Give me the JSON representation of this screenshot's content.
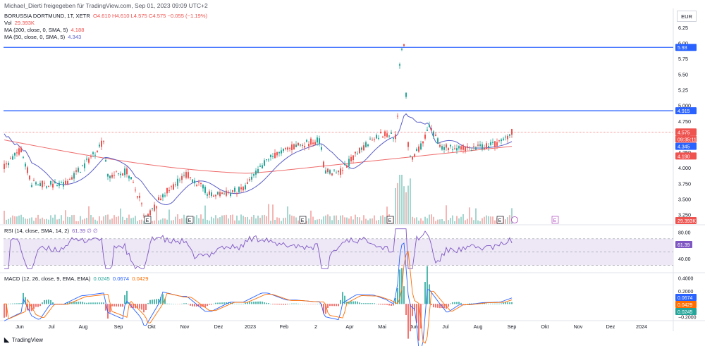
{
  "header": {
    "attribution": "Michael_Dierti freigegeben für TradingView.com, Sep 01, 2023 09:09 UTC+2"
  },
  "legend": {
    "symbol": "BORUSSIA DORTMUND, 1T, XETR",
    "ohlc": "O4.610  H4.610  L4.575  C4.575  −0.055 (−1.19%)",
    "vol_label": "Vol",
    "vol_value": "29.393K",
    "ma200_label": "MA (200, close, 0, SMA, 5)",
    "ma200_value": "4.188",
    "ma50_label": "MA (50, close, 0, SMA, 5)",
    "ma50_value": "4.343",
    "rsi_label": "RSI (14, close, SMA, 14, 2)",
    "rsi_value": "61.39  ∅  ∅",
    "macd_label": "MACD (12, 26, close, 9, EMA, EMA)",
    "macd_values": [
      "0.0245",
      "0.0674",
      "0.0429"
    ]
  },
  "currency": "EUR",
  "footer": {
    "brand": "TradingView"
  },
  "colors": {
    "up": "#26a69a",
    "down": "#ef5350",
    "ma50": "#5b5fc7",
    "ma200": "#ef6c6c",
    "hline": "#2962ff",
    "rsi": "#7e57c2",
    "macd": "#2962ff",
    "signal": "#ff6d00"
  },
  "chart_data": {
    "type": "candlestick",
    "price_axis": [
      "6.25",
      "6.00",
      "5.75",
      "5.50",
      "5.25",
      "5.000",
      "4.750",
      "4.500",
      "4.250",
      "4.000",
      "3.750",
      "3.500",
      "3.250"
    ],
    "ylim": [
      3.1,
      6.35
    ],
    "time_axis": [
      "Jun",
      "Jul",
      "Aug",
      "Sep",
      "Okt",
      "Nov",
      "Dez",
      "2023",
      "Feb",
      "2",
      "Apr",
      "Mai",
      "Jun",
      "Jul",
      "Aug",
      "Sep",
      "Okt",
      "Nov",
      "Dez",
      "2024"
    ],
    "horizontal_levels": [
      5.93,
      4.915
    ],
    "price_labels": {
      "last": "4.575",
      "countdown": "09:35:11",
      "ma50": "4.345",
      "ma200": "4.190",
      "volume": "29.393K",
      "level_high": "5.93",
      "level_low": "4.915"
    },
    "rsi_axis": [
      "80.00",
      "40.00"
    ],
    "rsi_last": "61.39",
    "macd_axis": [
      "0.4000",
      "0.2000",
      "−0.2000"
    ],
    "macd_labels": [
      "0.0674",
      "0.0429",
      "0.0245"
    ],
    "event_markers": [
      "E",
      "E",
      "E",
      "E",
      "E",
      "E"
    ]
  }
}
